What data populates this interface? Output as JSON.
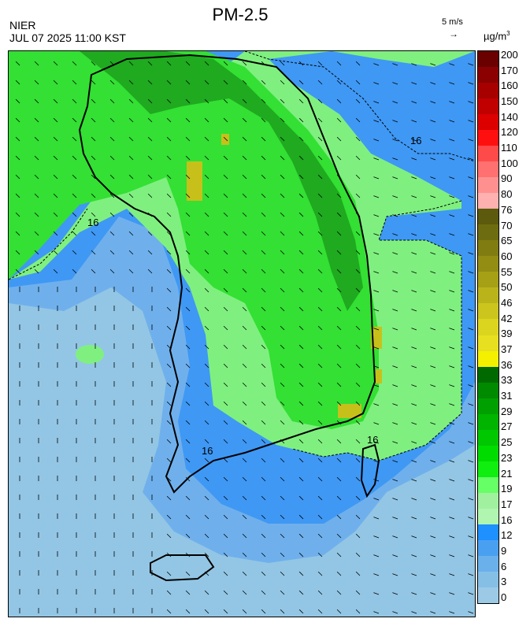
{
  "header": {
    "agency": "NIER",
    "datetime": "JUL 07 2025 11:00 KST",
    "title": "PM-2.5",
    "wind_reference": "5 m/s",
    "wind_reference_arrow": "→",
    "unit_base": "µg/m",
    "unit_exp": "3"
  },
  "legend": {
    "labels": [
      "200",
      "170",
      "160",
      "150",
      "140",
      "120",
      "110",
      "100",
      "90",
      "80",
      "76",
      "70",
      "65",
      "60",
      "55",
      "50",
      "46",
      "42",
      "39",
      "37",
      "36",
      "33",
      "31",
      "29",
      "27",
      "25",
      "23",
      "21",
      "19",
      "17",
      "16",
      "12",
      "9",
      "6",
      "3",
      "0"
    ],
    "colors": [
      "#6a0000",
      "#8b0000",
      "#a60000",
      "#c00000",
      "#dc0000",
      "#ff1010",
      "#ff4a4a",
      "#ff7070",
      "#ff9090",
      "#ffb0b0",
      "#5c5a0c",
      "#6e6c10",
      "#807c12",
      "#938d14",
      "#a6a016",
      "#bab41a",
      "#ccc51e",
      "#dcd520",
      "#e6e020",
      "#f4f000",
      "#006a00",
      "#008a00",
      "#00a000",
      "#00b400",
      "#00c800",
      "#00dc00",
      "#10ee10",
      "#66ff66",
      "#a0f0a0",
      "#b0f5b0",
      "#1e90ff",
      "#4aa0f0",
      "#6ab0ea",
      "#85bfe6",
      "#9cc9e6"
    ]
  },
  "map": {
    "contour_label": "16",
    "land_label": "16",
    "layer_colors": {
      "low": "#93c6e4",
      "blue_mid": "#6fb0ec",
      "blue_high": "#3f98f4",
      "light_green": "#7ff07f",
      "green": "#33e033",
      "dark_green": "#1faa1f",
      "yellow": "#c8c01a"
    }
  }
}
